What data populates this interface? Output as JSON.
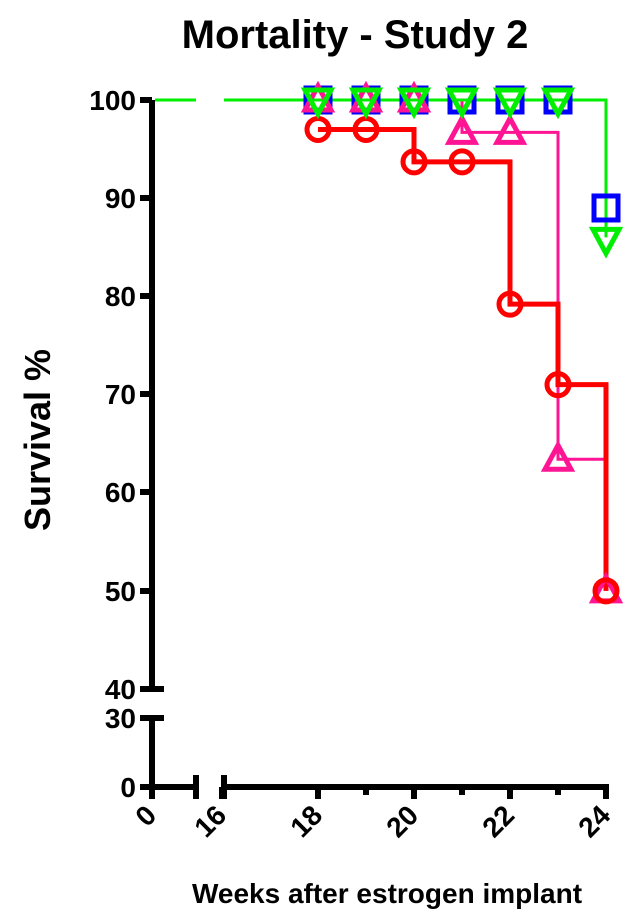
{
  "chart_data": {
    "type": "line",
    "title": "Mortality - Study 2",
    "xlabel": "Weeks after estrogen implant",
    "ylabel": "Survival %",
    "y_ticks": [
      "0",
      "30",
      "40",
      "50",
      "60",
      "70",
      "80",
      "90",
      "100"
    ],
    "x_ticks": [
      "0",
      "16",
      "18",
      "20",
      "22",
      "24"
    ],
    "x_axis_break": "between 0 and 16",
    "y_axis_break": "between 30 and 40",
    "grid": false,
    "legend": "none",
    "series": [
      {
        "marker": "square",
        "color": "#0000ff",
        "x": [
          18,
          19,
          20,
          21,
          22,
          23,
          24
        ],
        "y": [
          100,
          100,
          100,
          100,
          100,
          100,
          89
        ]
      },
      {
        "marker": "circle",
        "color": "#ff0000",
        "x": [
          18,
          19,
          20,
          21,
          22,
          23,
          24
        ],
        "y": [
          97,
          97,
          93.7,
          93.7,
          79.2,
          71,
          50
        ]
      },
      {
        "marker": "triangle-up",
        "color": "#ff1493",
        "x": [
          18,
          19,
          20,
          21,
          22,
          23,
          24
        ],
        "y": [
          100,
          100,
          100,
          96.7,
          96.7,
          63.4,
          50
        ]
      },
      {
        "marker": "triangle-down",
        "color": "#00ee00",
        "x": [
          18,
          19,
          20,
          21,
          22,
          23,
          24
        ],
        "y": [
          100,
          100,
          100,
          100,
          100,
          100,
          86
        ]
      }
    ]
  }
}
